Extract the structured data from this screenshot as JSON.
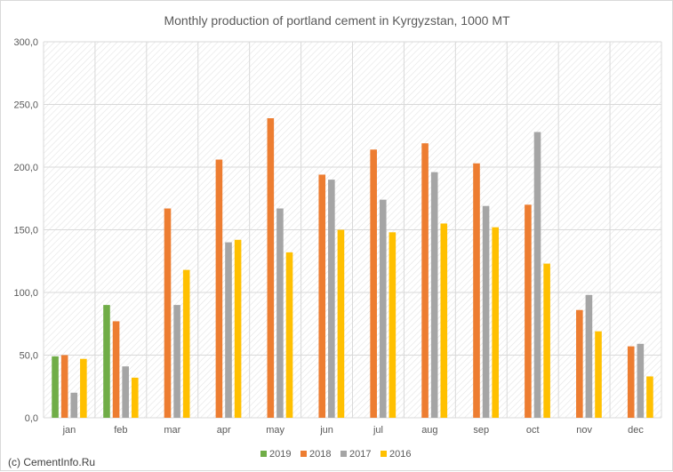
{
  "chart_data": {
    "type": "bar",
    "title": "Monthly production of portland cement in Kyrgyzstan, 1000 MT",
    "xlabel": "",
    "ylabel": "",
    "ylim": [
      0,
      300
    ],
    "yticks": [
      "0,0",
      "50,0",
      "100,0",
      "150,0",
      "200,0",
      "250,0",
      "300,0"
    ],
    "categories": [
      "jan",
      "feb",
      "mar",
      "apr",
      "may",
      "jun",
      "jul",
      "aug",
      "sep",
      "oct",
      "nov",
      "dec"
    ],
    "series": [
      {
        "name": "2019",
        "color": "#70ad47",
        "values": [
          49,
          90,
          null,
          null,
          null,
          null,
          null,
          null,
          null,
          null,
          null,
          null
        ]
      },
      {
        "name": "2018",
        "color": "#ed7d31",
        "values": [
          50,
          77,
          167,
          206,
          239,
          194,
          214,
          219,
          203,
          170,
          86,
          57
        ]
      },
      {
        "name": "2017",
        "color": "#a5a5a5",
        "values": [
          20,
          41,
          90,
          140,
          167,
          190,
          174,
          196,
          169,
          228,
          98,
          59
        ]
      },
      {
        "name": "2016",
        "color": "#ffc000",
        "values": [
          47,
          32,
          118,
          142,
          132,
          150,
          148,
          155,
          152,
          123,
          69,
          33
        ]
      }
    ],
    "grid": true,
    "legend_position": "bottom"
  },
  "credit": "(c) CementInfo.Ru"
}
